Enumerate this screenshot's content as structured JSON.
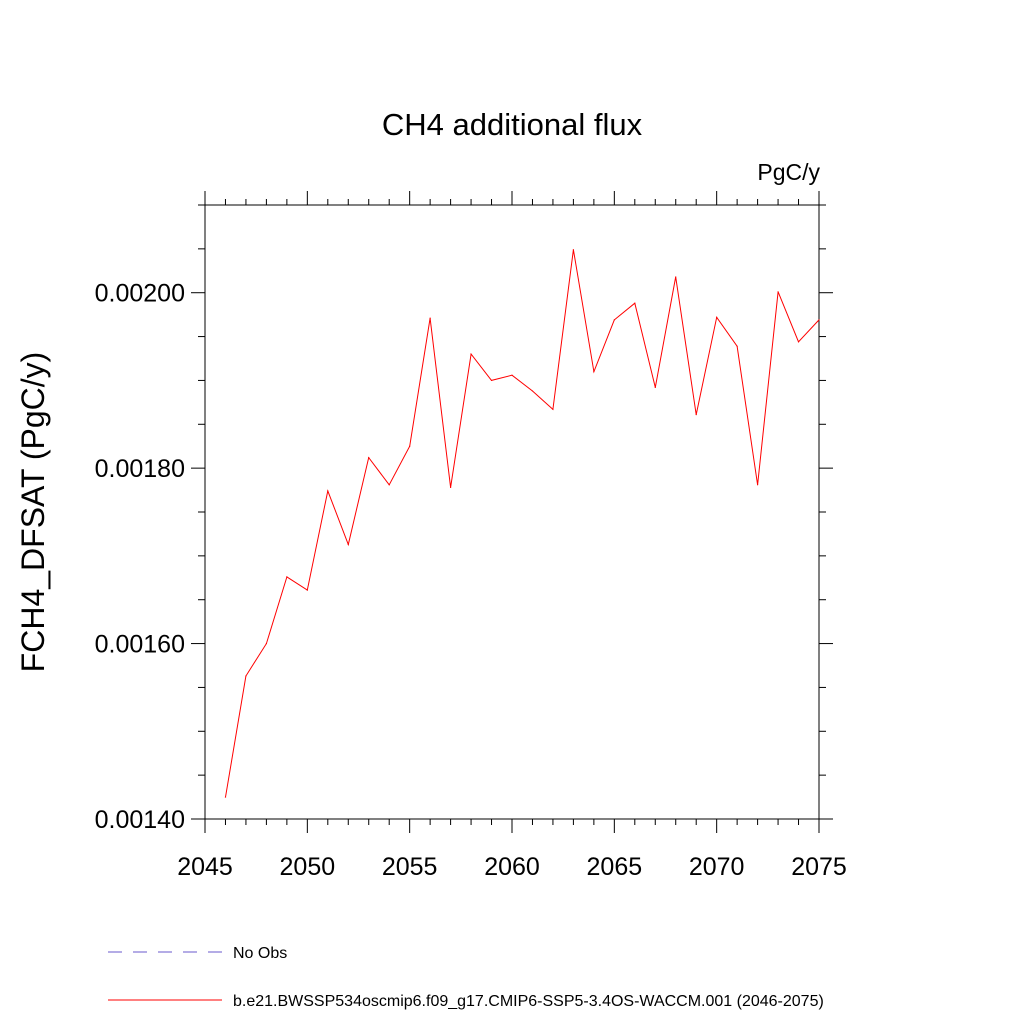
{
  "chart_data": {
    "type": "line",
    "title": "CH4 additional flux",
    "units": "PgC/y",
    "ylabel": "FCH4_DFSAT  (PgC/y)",
    "xlabel": "",
    "xlim": [
      2045,
      2075
    ],
    "ylim": [
      0.0014,
      0.0021
    ],
    "x_ticks": [
      2045,
      2050,
      2055,
      2060,
      2065,
      2070,
      2075
    ],
    "x_tick_labels": [
      "2045",
      "2050",
      "2055",
      "2060",
      "2065",
      "2070",
      "2075"
    ],
    "y_ticks": [
      0.0014,
      0.0016,
      0.0018,
      0.002
    ],
    "y_tick_labels": [
      "0.00140",
      "0.00160",
      "0.00180",
      "0.00200"
    ],
    "y_minor_step": 5e-05,
    "grid": false,
    "legend_position": "bottom-left",
    "legend": [
      {
        "label": "No Obs",
        "color": "#6a5acd",
        "style": "dashed"
      },
      {
        "label": "b.e21.BWSSP534oscmip6.f09_g17.CMIP6-SSP5-3.4OS-WACCM.001 (2046-2075)",
        "color": "#ff0000",
        "style": "solid"
      }
    ],
    "series": [
      {
        "name": "b.e21.BWSSP534oscmip6.f09_g17.CMIP6-SSP5-3.4OS-WACCM.001 (2046-2075)",
        "color": "#ff0000",
        "x": [
          2046,
          2047,
          2048,
          2049,
          2050,
          2051,
          2052,
          2053,
          2054,
          2055,
          2056,
          2057,
          2058,
          2059,
          2060,
          2061,
          2062,
          2063,
          2064,
          2065,
          2066,
          2067,
          2068,
          2069,
          2070,
          2071,
          2072,
          2073,
          2074,
          2075
        ],
        "y": [
          0.001425,
          0.001563,
          0.0016,
          0.001676,
          0.001661,
          0.001774,
          0.001713,
          0.001812,
          0.001781,
          0.001825,
          0.001971,
          0.001778,
          0.00193,
          0.0019,
          0.001906,
          0.001888,
          0.001867,
          0.002049,
          0.00191,
          0.001969,
          0.001988,
          0.001892,
          0.002018,
          0.001861,
          0.001972,
          0.001939,
          0.001781,
          0.002001,
          0.001944,
          0.001969
        ]
      }
    ]
  }
}
